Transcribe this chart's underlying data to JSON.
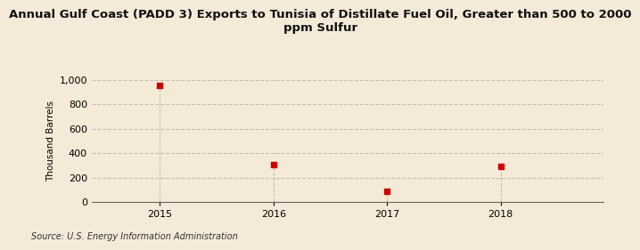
{
  "title": "Annual Gulf Coast (PADD 3) Exports to Tunisia of Distillate Fuel Oil, Greater than 500 to 2000\nppm Sulfur",
  "ylabel": "Thousand Barrels",
  "source": "Source: U.S. Energy Information Administration",
  "x": [
    2015,
    2016,
    2017,
    2018
  ],
  "y": [
    950,
    308,
    88,
    291
  ],
  "xlim": [
    2014.4,
    2018.9
  ],
  "ylim": [
    0,
    1000
  ],
  "yticks": [
    0,
    200,
    400,
    600,
    800,
    1000
  ],
  "ytick_labels": [
    "0",
    "200",
    "400",
    "600",
    "800",
    "1,000"
  ],
  "xticks": [
    2015,
    2016,
    2017,
    2018
  ],
  "marker_color": "#cc0000",
  "marker_size": 5,
  "background_color": "#f5ead8",
  "grid_color": "#c8bfaf",
  "title_fontsize": 9.5,
  "axis_label_fontsize": 7.5,
  "tick_fontsize": 8,
  "source_fontsize": 7
}
